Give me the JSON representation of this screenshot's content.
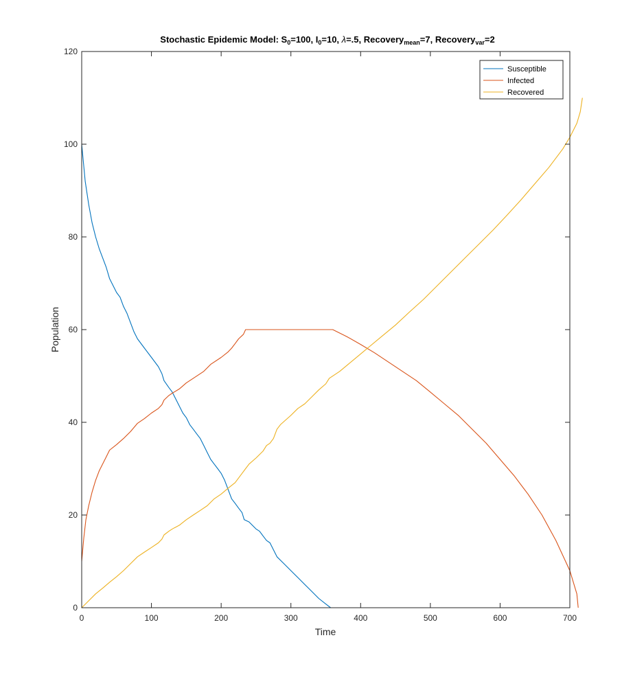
{
  "chart_data": {
    "type": "line",
    "title": {
      "parts": [
        {
          "t": "Stochastic Epidemic Model: S"
        },
        {
          "t": "0",
          "sub": true
        },
        {
          "t": "=100, I"
        },
        {
          "t": "0",
          "sub": true
        },
        {
          "t": "=10, "
        },
        {
          "t": "λ",
          "italic": true
        },
        {
          "t": "=.5, Recovery"
        },
        {
          "t": "mean",
          "sub": true
        },
        {
          "t": "=7, Recovery"
        },
        {
          "t": "var",
          "sub": true
        },
        {
          "t": "=2"
        }
      ]
    },
    "xlabel": "Time",
    "ylabel": "Population",
    "xlim": [
      0,
      700
    ],
    "ylim": [
      0,
      120
    ],
    "xticks": [
      0,
      100,
      200,
      300,
      400,
      500,
      600,
      700
    ],
    "yticks": [
      0,
      20,
      40,
      60,
      80,
      100,
      120
    ],
    "grid": false,
    "legend_position": "top-right",
    "series": [
      {
        "name": "Susceptible",
        "color": "#0072BD",
        "points": [
          [
            0,
            100
          ],
          [
            5,
            92
          ],
          [
            10,
            87
          ],
          [
            15,
            83
          ],
          [
            20,
            80
          ],
          [
            25,
            77.5
          ],
          [
            30,
            75.5
          ],
          [
            35,
            73.5
          ],
          [
            40,
            71
          ],
          [
            45,
            69.5
          ],
          [
            50,
            68
          ],
          [
            55,
            67
          ],
          [
            60,
            65
          ],
          [
            65,
            63.5
          ],
          [
            70,
            61.5
          ],
          [
            75,
            59.5
          ],
          [
            80,
            58
          ],
          [
            90,
            56
          ],
          [
            100,
            54
          ],
          [
            110,
            52
          ],
          [
            115,
            50.5
          ],
          [
            118,
            49
          ],
          [
            125,
            47.5
          ],
          [
            130,
            46.5
          ],
          [
            135,
            45
          ],
          [
            140,
            43.5
          ],
          [
            145,
            42
          ],
          [
            150,
            41
          ],
          [
            155,
            39.5
          ],
          [
            160,
            38.5
          ],
          [
            165,
            37.5
          ],
          [
            170,
            36.5
          ],
          [
            175,
            35
          ],
          [
            180,
            33.5
          ],
          [
            185,
            32
          ],
          [
            190,
            31
          ],
          [
            195,
            30
          ],
          [
            200,
            29
          ],
          [
            205,
            27.5
          ],
          [
            210,
            25.5
          ],
          [
            215,
            23.5
          ],
          [
            220,
            22.5
          ],
          [
            225,
            21.5
          ],
          [
            230,
            20.5
          ],
          [
            233,
            19
          ],
          [
            240,
            18.5
          ],
          [
            250,
            17
          ],
          [
            255,
            16.5
          ],
          [
            260,
            15.5
          ],
          [
            265,
            14.5
          ],
          [
            270,
            14
          ],
          [
            275,
            12.5
          ],
          [
            280,
            11
          ],
          [
            290,
            9.5
          ],
          [
            300,
            8
          ],
          [
            310,
            6.5
          ],
          [
            320,
            5
          ],
          [
            330,
            3.5
          ],
          [
            340,
            2
          ],
          [
            350,
            0.8
          ],
          [
            357,
            0
          ],
          [
            660,
            0
          ]
        ]
      },
      {
        "name": "Infected",
        "color": "#D95319",
        "points": [
          [
            0,
            10
          ],
          [
            3,
            15
          ],
          [
            6,
            19
          ],
          [
            10,
            22
          ],
          [
            15,
            25
          ],
          [
            20,
            27.5
          ],
          [
            25,
            29.5
          ],
          [
            30,
            31
          ],
          [
            35,
            32.5
          ],
          [
            40,
            34
          ],
          [
            50,
            35.2
          ],
          [
            60,
            36.5
          ],
          [
            70,
            38
          ],
          [
            80,
            39.8
          ],
          [
            90,
            40.8
          ],
          [
            100,
            42
          ],
          [
            110,
            43
          ],
          [
            115,
            43.8
          ],
          [
            118,
            44.8
          ],
          [
            125,
            45.8
          ],
          [
            130,
            46.3
          ],
          [
            140,
            47.2
          ],
          [
            150,
            48.5
          ],
          [
            160,
            49.5
          ],
          [
            175,
            51
          ],
          [
            185,
            52.5
          ],
          [
            200,
            54
          ],
          [
            210,
            55.2
          ],
          [
            215,
            56
          ],
          [
            220,
            57
          ],
          [
            225,
            58
          ],
          [
            232,
            59
          ],
          [
            235,
            60
          ],
          [
            360,
            60
          ],
          [
            380,
            58.5
          ],
          [
            400,
            56.8
          ],
          [
            420,
            55
          ],
          [
            440,
            53
          ],
          [
            460,
            51
          ],
          [
            480,
            49
          ],
          [
            500,
            46.5
          ],
          [
            520,
            44
          ],
          [
            540,
            41.5
          ],
          [
            560,
            38.5
          ],
          [
            580,
            35.5
          ],
          [
            600,
            32
          ],
          [
            620,
            28.5
          ],
          [
            640,
            24.5
          ],
          [
            660,
            20
          ],
          [
            680,
            14.5
          ],
          [
            700,
            8
          ],
          [
            710,
            3
          ],
          [
            712,
            0
          ]
        ]
      },
      {
        "name": "Recovered",
        "color": "#EDB120",
        "points": [
          [
            0,
            0
          ],
          [
            10,
            1.5
          ],
          [
            20,
            3
          ],
          [
            30,
            4.2
          ],
          [
            40,
            5.5
          ],
          [
            50,
            6.7
          ],
          [
            60,
            8
          ],
          [
            70,
            9.5
          ],
          [
            80,
            11
          ],
          [
            90,
            12
          ],
          [
            100,
            13
          ],
          [
            110,
            14
          ],
          [
            115,
            14.8
          ],
          [
            118,
            15.7
          ],
          [
            125,
            16.5
          ],
          [
            130,
            17
          ],
          [
            140,
            17.8
          ],
          [
            150,
            19
          ],
          [
            160,
            20
          ],
          [
            170,
            21
          ],
          [
            180,
            22
          ],
          [
            190,
            23.5
          ],
          [
            200,
            24.5
          ],
          [
            210,
            25.8
          ],
          [
            220,
            27
          ],
          [
            230,
            29
          ],
          [
            235,
            30
          ],
          [
            240,
            31
          ],
          [
            250,
            32.3
          ],
          [
            260,
            33.8
          ],
          [
            265,
            35
          ],
          [
            270,
            35.5
          ],
          [
            275,
            36.5
          ],
          [
            280,
            38.5
          ],
          [
            285,
            39.5
          ],
          [
            300,
            41.5
          ],
          [
            310,
            43
          ],
          [
            320,
            44
          ],
          [
            330,
            45.5
          ],
          [
            340,
            47
          ],
          [
            350,
            48.3
          ],
          [
            355,
            49.5
          ],
          [
            370,
            51
          ],
          [
            390,
            53.5
          ],
          [
            410,
            56
          ],
          [
            430,
            58.5
          ],
          [
            450,
            61
          ],
          [
            470,
            63.8
          ],
          [
            490,
            66.5
          ],
          [
            510,
            69.5
          ],
          [
            530,
            72.5
          ],
          [
            550,
            75.5
          ],
          [
            570,
            78.5
          ],
          [
            590,
            81.5
          ],
          [
            610,
            84.7
          ],
          [
            630,
            88
          ],
          [
            650,
            91.5
          ],
          [
            670,
            95
          ],
          [
            690,
            99
          ],
          [
            700,
            101.5
          ],
          [
            710,
            104.5
          ],
          [
            715,
            107
          ],
          [
            718,
            110
          ]
        ]
      }
    ]
  }
}
